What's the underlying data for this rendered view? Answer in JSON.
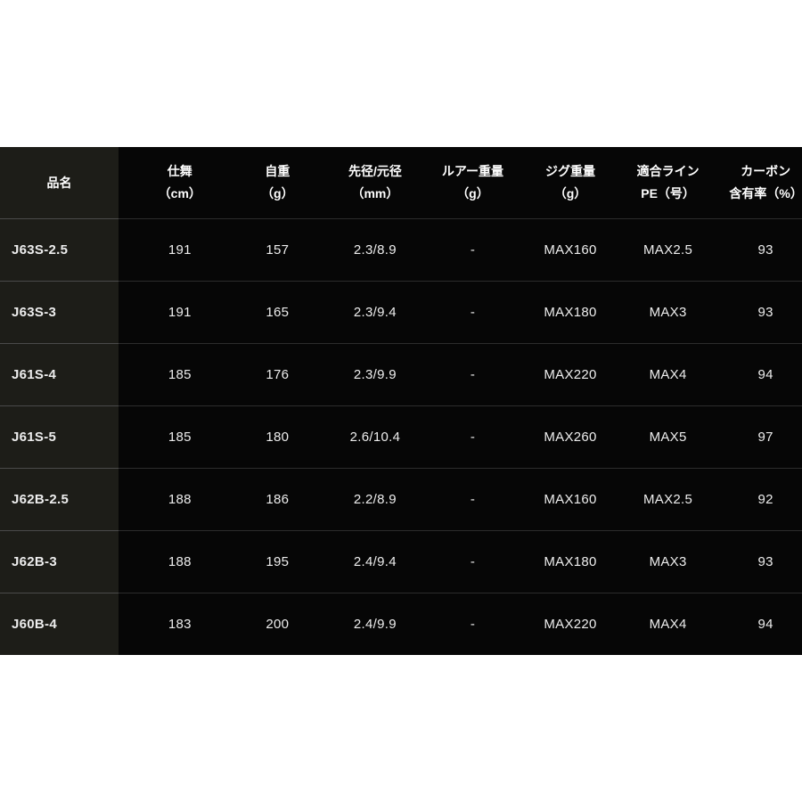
{
  "colors": {
    "page_bg": "#ffffff",
    "table_bg": "#060606",
    "model_column_bg": "#1d1d18",
    "row_separator": "#2c2c2c",
    "model_row_separator": "#4a4a4a",
    "header_text": "#ffffff",
    "cell_text": "#ededed"
  },
  "table": {
    "headers": [
      {
        "line1": "品名",
        "line2": ""
      },
      {
        "line1": "仕舞",
        "line2": "（cm）"
      },
      {
        "line1": "自重",
        "line2": "（g）"
      },
      {
        "line1": "先径/元径",
        "line2": "（mm）"
      },
      {
        "line1": "ルアー重量",
        "line2": "（g）"
      },
      {
        "line1": "ジグ重量（g）",
        "line2": ""
      },
      {
        "line1": "適合ライン",
        "line2": "PE（号）"
      },
      {
        "line1": "カーボン",
        "line2": "含有率（%）"
      }
    ]
  },
  "chart_data": {
    "type": "table",
    "title": "",
    "columns": [
      "品名",
      "仕舞（cm）",
      "自重（g）",
      "先径/元径（mm）",
      "ルアー重量（g）",
      "ジグ重量（g）",
      "適合ライン PE（号）",
      "カーボン含有率（%）"
    ],
    "rows": [
      [
        "J63S-2.5",
        "191",
        "157",
        "2.3/8.9",
        "-",
        "MAX160",
        "MAX2.5",
        "93"
      ],
      [
        "J63S-3",
        "191",
        "165",
        "2.3/9.4",
        "-",
        "MAX180",
        "MAX3",
        "93"
      ],
      [
        "J61S-4",
        "185",
        "176",
        "2.3/9.9",
        "-",
        "MAX220",
        "MAX4",
        "94"
      ],
      [
        "J61S-5",
        "185",
        "180",
        "2.6/10.4",
        "-",
        "MAX260",
        "MAX5",
        "97"
      ],
      [
        "J62B-2.5",
        "188",
        "186",
        "2.2/8.9",
        "-",
        "MAX160",
        "MAX2.5",
        "92"
      ],
      [
        "J62B-3",
        "188",
        "195",
        "2.4/9.4",
        "-",
        "MAX180",
        "MAX3",
        "93"
      ],
      [
        "J60B-4",
        "183",
        "200",
        "2.4/9.9",
        "-",
        "MAX220",
        "MAX4",
        "94"
      ]
    ]
  }
}
